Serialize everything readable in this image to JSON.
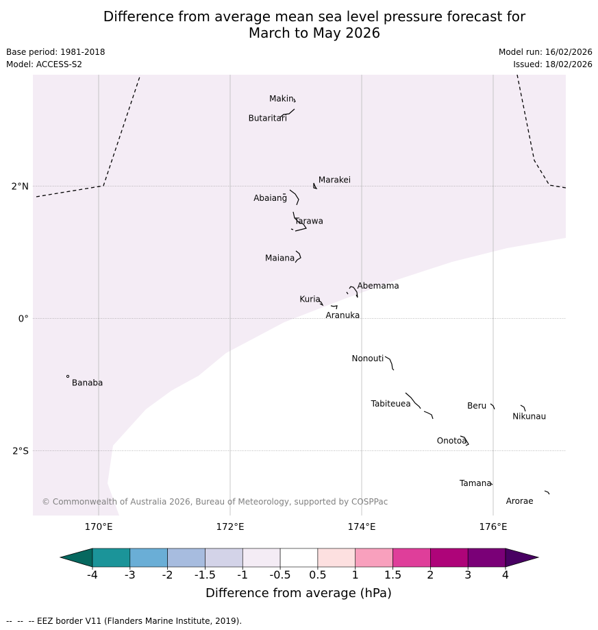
{
  "title_line1": "Difference from average mean sea level pressure forecast for",
  "title_line2": "March to May 2026",
  "meta": {
    "base_period": "Base period: 1981-2018",
    "model": "Model: ACCESS-S2",
    "model_run": "Model run: 16/02/2026",
    "issued": "Issued: 18/02/2026"
  },
  "map": {
    "lon_range": [
      169,
      177
    ],
    "lat_range": [
      -3,
      3.75
    ],
    "lon_ticks": [
      {
        "value": 170,
        "label": "170°E"
      },
      {
        "value": 172,
        "label": "172°E"
      },
      {
        "value": 174,
        "label": "174°E"
      },
      {
        "value": 176,
        "label": "176°E"
      }
    ],
    "lat_ticks": [
      {
        "value": 2,
        "label": "2°N"
      },
      {
        "value": 0,
        "label": "0°"
      },
      {
        "value": -2,
        "label": "2°S"
      }
    ],
    "shaded_category": "-1 to -0.5",
    "shaded_color": "#f4ecf5",
    "islands": [
      {
        "name": "Makin",
        "lon": 172.98,
        "lat": 3.35
      },
      {
        "name": "Butaritari",
        "lon": 172.85,
        "lat": 3.08
      },
      {
        "name": "Marakei",
        "lon": 173.28,
        "lat": 2.0
      },
      {
        "name": "Abaiang",
        "lon": 172.95,
        "lat": 1.85
      },
      {
        "name": "Tarawa",
        "lon": 173.05,
        "lat": 1.4
      },
      {
        "name": "Maiana",
        "lon": 173.0,
        "lat": 0.9
      },
      {
        "name": "Abemama",
        "lon": 173.88,
        "lat": 0.4
      },
      {
        "name": "Kuria",
        "lon": 173.4,
        "lat": 0.23
      },
      {
        "name": "Aranuka",
        "lon": 173.62,
        "lat": 0.17
      },
      {
        "name": "Banaba",
        "lon": 169.53,
        "lat": -0.87
      },
      {
        "name": "Nonouti",
        "lon": 174.38,
        "lat": -0.65
      },
      {
        "name": "Tabiteuea",
        "lon": 174.85,
        "lat": -1.3
      },
      {
        "name": "Beru",
        "lon": 175.98,
        "lat": -1.33
      },
      {
        "name": "Nikunau",
        "lon": 176.45,
        "lat": -1.36
      },
      {
        "name": "Onotoa",
        "lon": 175.55,
        "lat": -1.85
      },
      {
        "name": "Tamana",
        "lon": 175.99,
        "lat": -2.5
      },
      {
        "name": "Arorae",
        "lon": 176.82,
        "lat": -2.65
      }
    ],
    "copyright": "© Commonwealth of Australia 2026, Bureau of Meteorology, supported by COSPPac"
  },
  "colorbar": {
    "ticks": [
      "-4",
      "-3",
      "-2",
      "-1.5",
      "-1",
      "-0.5",
      "0.5",
      "1",
      "1.5",
      "2",
      "3",
      "4"
    ],
    "colors": [
      "#1b9499",
      "#6aaed6",
      "#a7bcdf",
      "#d3d3e8",
      "#f4ecf5",
      "#ffffff",
      "#fde0e0",
      "#f8a0bd",
      "#df3e9a",
      "#ae0479",
      "#7a0077"
    ],
    "under_color": "#06685f",
    "over_color": "#480062",
    "label": "Difference from average (hPa)"
  },
  "footer_note": "--  --  -- EEZ border V11 (Flanders Marine Institute, 2019)."
}
